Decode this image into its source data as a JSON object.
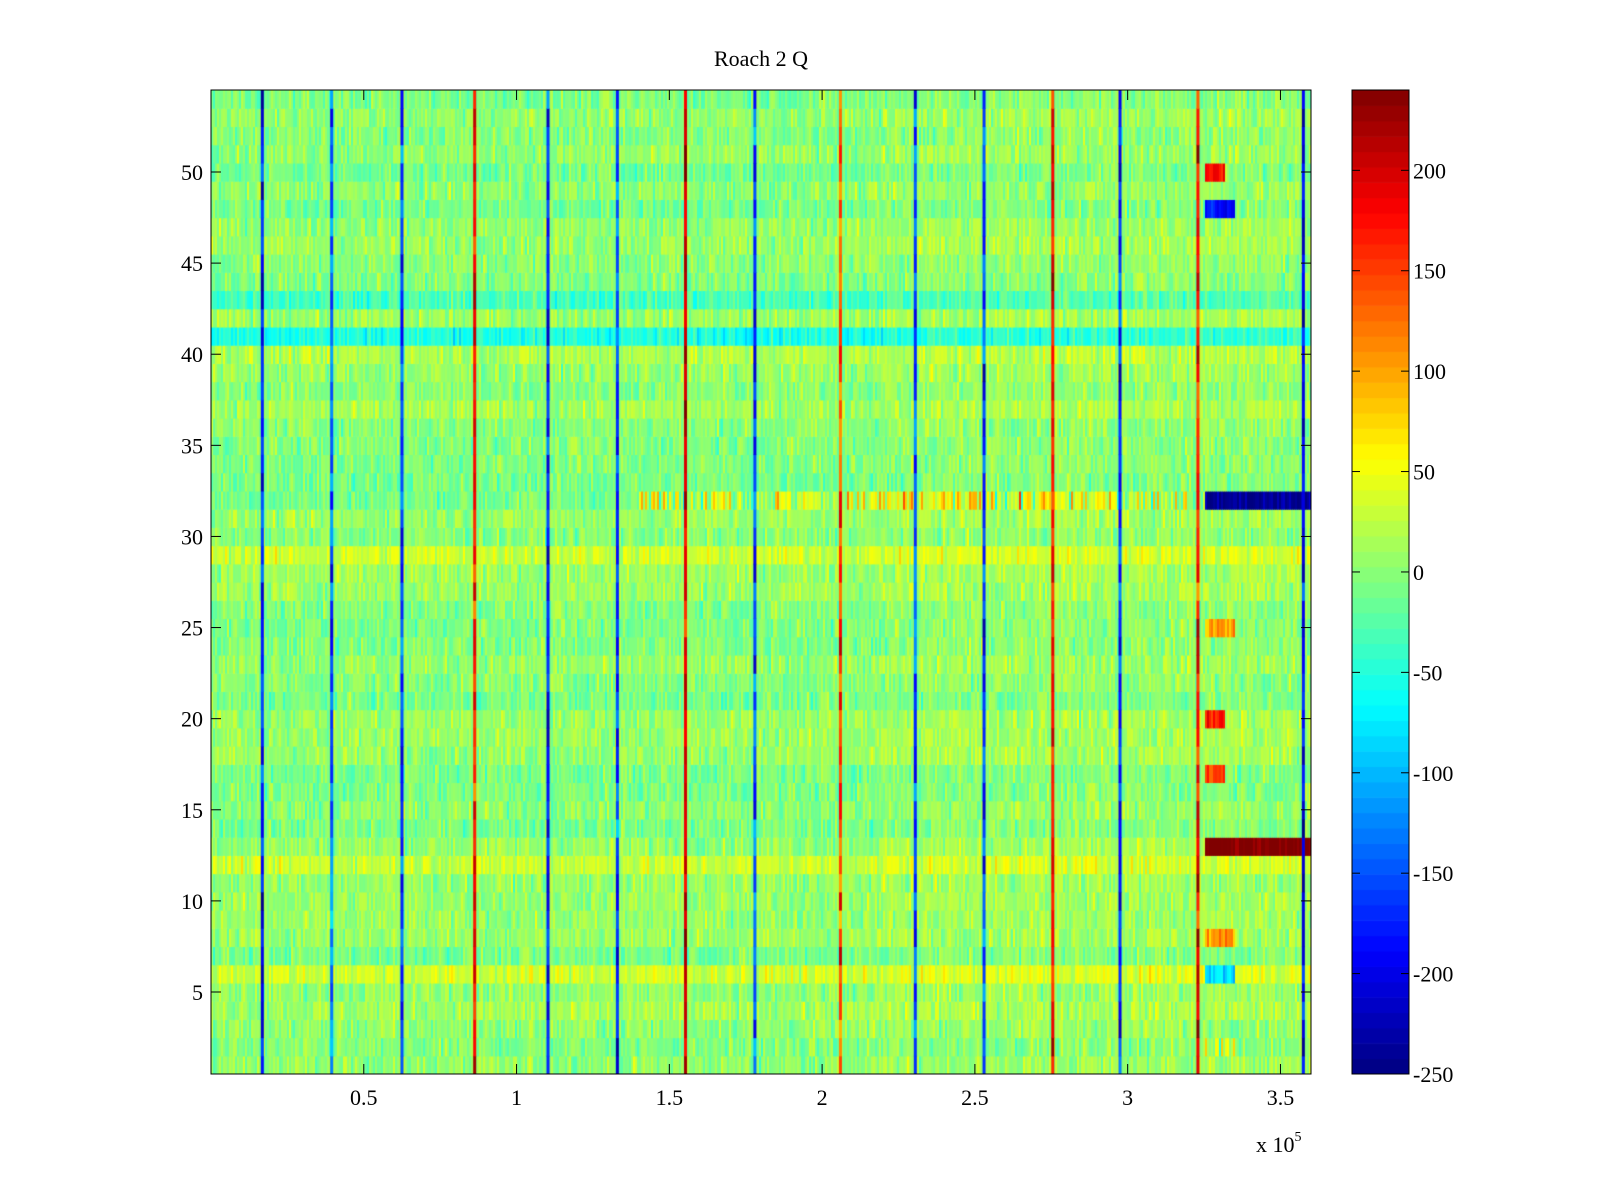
{
  "chart_data": {
    "type": "heatmap",
    "title": "Roach 2 Q",
    "xlabel": "",
    "ylabel": "",
    "x_multiplier_label": "x 10",
    "x_multiplier_exponent": "5",
    "xlim": [
      0,
      3.6
    ],
    "ylim": [
      0.5,
      54.5
    ],
    "x_ticks": [
      0.5,
      1,
      1.5,
      2,
      2.5,
      3,
      3.5
    ],
    "x_tick_labels": [
      "0.5",
      "1",
      "1.5",
      "2",
      "2.5",
      "3",
      "3.5"
    ],
    "y_ticks": [
      5,
      10,
      15,
      20,
      25,
      30,
      35,
      40,
      45,
      50
    ],
    "y_tick_labels": [
      "5",
      "10",
      "15",
      "20",
      "25",
      "30",
      "35",
      "40",
      "45",
      "50"
    ],
    "rows": 54,
    "colormap": "jet",
    "clim": [
      -250,
      240
    ],
    "colorbar_ticks": [
      200,
      150,
      100,
      50,
      0,
      -50,
      -100,
      -150,
      -200,
      -250
    ],
    "colorbar_tick_labels": [
      "200",
      "150",
      "100",
      "50",
      "0",
      "-50",
      "-100",
      "-150",
      "-200",
      "-250"
    ],
    "baseline_value": 0,
    "vertical_stripes": [
      {
        "x": 0.168,
        "value": -180
      },
      {
        "x": 0.395,
        "value": -140
      },
      {
        "x": 0.625,
        "value": -160
      },
      {
        "x": 0.863,
        "value": 180
      },
      {
        "x": 1.103,
        "value": -180
      },
      {
        "x": 1.33,
        "value": -160
      },
      {
        "x": 1.553,
        "value": 200
      },
      {
        "x": 1.78,
        "value": -150
      },
      {
        "x": 2.06,
        "value": 150
      },
      {
        "x": 2.305,
        "value": -150
      },
      {
        "x": 2.53,
        "value": -160
      },
      {
        "x": 2.755,
        "value": 170
      },
      {
        "x": 2.975,
        "value": -180
      },
      {
        "x": 3.23,
        "value": 180
      },
      {
        "x": 3.575,
        "value": -200
      }
    ],
    "row_offsets": [
      {
        "row": 2,
        "value": 40,
        "x_from": 3.25,
        "x_to": 3.35
      },
      {
        "row": 6,
        "value": 30
      },
      {
        "row": 6,
        "value": -120,
        "x_from": 3.25,
        "x_to": 3.35
      },
      {
        "row": 8,
        "value": 90,
        "x_from": 3.25,
        "x_to": 3.35
      },
      {
        "row": 12,
        "value": 35
      },
      {
        "row": 13,
        "value": 230,
        "x_from": 3.25,
        "x_to": 3.6
      },
      {
        "row": 17,
        "value": 150,
        "x_from": 3.25,
        "x_to": 3.32
      },
      {
        "row": 20,
        "value": 150,
        "x_from": 3.25,
        "x_to": 3.32
      },
      {
        "row": 25,
        "value": 100,
        "x_from": 3.25,
        "x_to": 3.35
      },
      {
        "row": 29,
        "value": 35
      },
      {
        "row": 32,
        "value": 40,
        "x_from": 1.4,
        "x_to": 3.2
      },
      {
        "row": 32,
        "value": -240,
        "x_from": 3.25,
        "x_to": 3.6
      },
      {
        "row": 40,
        "value": 25
      },
      {
        "row": 41,
        "value": -50
      },
      {
        "row": 43,
        "value": -40
      },
      {
        "row": 48,
        "value": -180,
        "x_from": 3.25,
        "x_to": 3.35
      },
      {
        "row": 50,
        "value": 180,
        "x_from": 3.25,
        "x_to": 3.32
      }
    ]
  }
}
